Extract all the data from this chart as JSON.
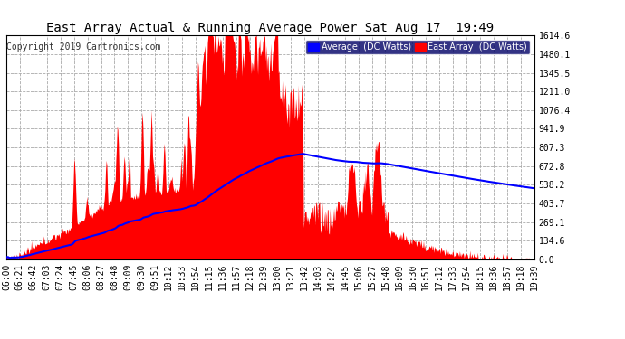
{
  "title": "East Array Actual & Running Average Power Sat Aug 17  19:49",
  "copyright": "Copyright 2019 Cartronics.com",
  "legend_avg": "Average  (DC Watts)",
  "legend_east": "East Array  (DC Watts)",
  "y_ticks": [
    0.0,
    134.6,
    269.1,
    403.7,
    538.2,
    672.8,
    807.3,
    941.9,
    1076.4,
    1211.0,
    1345.5,
    1480.1,
    1614.6
  ],
  "x_labels": [
    "06:00",
    "06:21",
    "06:42",
    "07:03",
    "07:24",
    "07:45",
    "08:06",
    "08:27",
    "08:48",
    "09:09",
    "09:30",
    "09:51",
    "10:12",
    "10:33",
    "10:54",
    "11:15",
    "11:36",
    "11:57",
    "12:18",
    "12:39",
    "13:00",
    "13:21",
    "13:42",
    "14:03",
    "14:24",
    "14:45",
    "15:06",
    "15:27",
    "15:48",
    "16:09",
    "16:30",
    "16:51",
    "17:12",
    "17:33",
    "17:54",
    "18:15",
    "18:36",
    "18:57",
    "19:18",
    "19:39"
  ],
  "background_color": "#ffffff",
  "plot_bg_color": "#ffffff",
  "area_color": "#ff0000",
  "avg_line_color": "#0000ff",
  "grid_color": "#aaaaaa",
  "title_color": "#000000",
  "ymax": 1614.6,
  "title_fontsize": 10,
  "copyright_fontsize": 7,
  "tick_fontsize": 7,
  "legend_fontsize": 7
}
